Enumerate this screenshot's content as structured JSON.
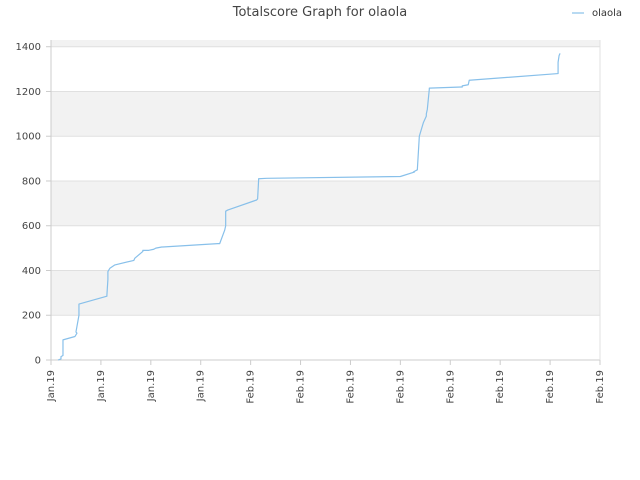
{
  "chart_data": {
    "type": "line",
    "title": "Totalscore Graph for olaola",
    "xlabel": "",
    "ylabel": "",
    "ylim": [
      0,
      1430
    ],
    "y_ticks": [
      0,
      200,
      400,
      600,
      800,
      1000,
      1200,
      1400
    ],
    "x_tick_labels": [
      "Jan.19",
      "Jan.19",
      "Jan.19",
      "Jan.19",
      "Feb.19",
      "Feb.19",
      "Feb.19",
      "Feb.19",
      "Feb.19",
      "Feb.19",
      "Feb.19",
      "Feb.19"
    ],
    "grid": true,
    "background_bands": "alternating",
    "legend_position": "top-right",
    "colors": {
      "series": "#88c0ea",
      "band": "#f2f2f2",
      "grid": "#e0e0e0",
      "axis": "#cccccc"
    },
    "series": [
      {
        "name": "olaola",
        "x": [
          0.14,
          0.2,
          0.2,
          0.24,
          0.24,
          0.4,
          0.48,
          0.52,
          0.5,
          0.52,
          0.54,
          0.56,
          0.56,
          1.12,
          1.12,
          1.14,
          1.14,
          1.18,
          1.28,
          1.66,
          1.68,
          1.84,
          1.84,
          1.96,
          2.06,
          2.1,
          2.22,
          2.24,
          3.34,
          3.38,
          3.48,
          3.5,
          3.5,
          3.54,
          4.12,
          4.14,
          4.16,
          4.16,
          4.32,
          7.0,
          7.28,
          7.26,
          7.3,
          7.34,
          7.38,
          7.46,
          7.52,
          7.52,
          7.54,
          7.58,
          7.58,
          8.22,
          8.24,
          8.24,
          8.36,
          8.38,
          10.16,
          10.16,
          10.18,
          10.2
        ],
        "y": [
          0,
          5,
          15,
          20,
          90,
          100,
          105,
          120,
          125,
          150,
          175,
          200,
          250,
          285,
          290,
          360,
          395,
          410,
          425,
          445,
          455,
          485,
          490,
          490,
          495,
          500,
          505,
          505,
          520,
          520,
          580,
          600,
          665,
          670,
          715,
          720,
          805,
          810,
          812,
          820,
          840,
          840,
          845,
          850,
          1000,
          1060,
          1090,
          1100,
          1120,
          1210,
          1215,
          1220,
          1220,
          1225,
          1230,
          1250,
          1280,
          1330,
          1360,
          1370
        ]
      }
    ]
  }
}
